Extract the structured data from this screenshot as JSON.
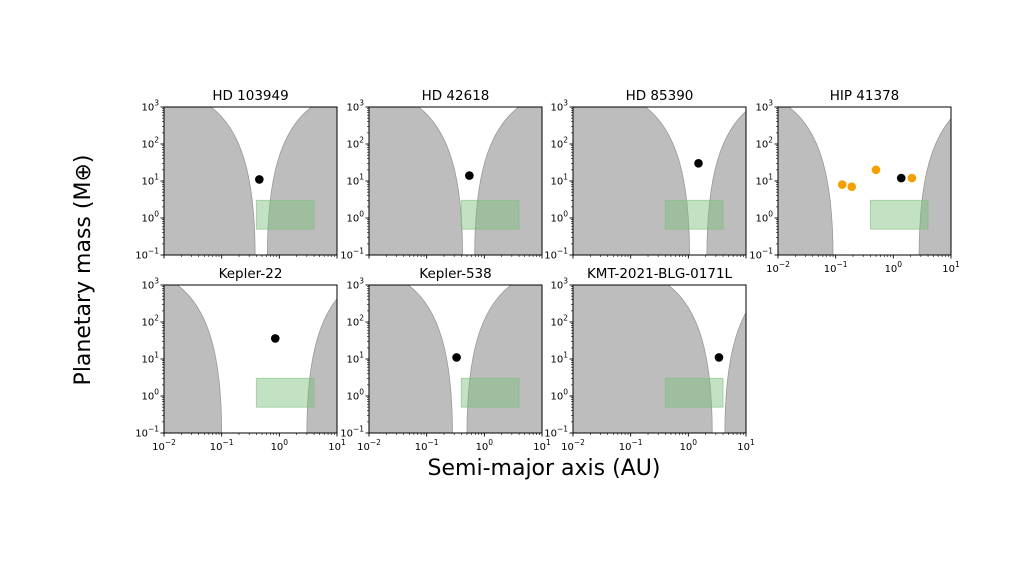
{
  "figure": {
    "ylabel": "Planetary mass (M⊕)",
    "xlabel": "Semi-major axis (AU)"
  },
  "chart_data": {
    "type": "scatter",
    "x_scale": "log",
    "y_scale": "log",
    "xlim": [
      0.01,
      10
    ],
    "ylim": [
      0.1,
      1000
    ],
    "x_ticks": [
      0.01,
      0.1,
      1,
      10
    ],
    "y_ticks": [
      0.1,
      1,
      10,
      100,
      1000
    ],
    "colors": {
      "excluded_region": "#bdbdbd",
      "excluded_edge": "#999999",
      "highlight_box": "#7bbf7b",
      "planet_primary": "#000000",
      "planet_companion": "#f5a000"
    },
    "highlight_box": {
      "x": [
        0.4,
        4
      ],
      "y": [
        0.5,
        3
      ]
    },
    "panels": [
      {
        "title": "HD 103949",
        "inner_limit": 0.38,
        "outer_limit": 0.62,
        "show_xticks": false,
        "points": [
          {
            "x": 0.45,
            "y": 11,
            "color": "#000000"
          }
        ]
      },
      {
        "title": "HD 42618",
        "inner_limit": 0.42,
        "outer_limit": 0.68,
        "show_xticks": false,
        "points": [
          {
            "x": 0.55,
            "y": 14,
            "color": "#000000"
          }
        ]
      },
      {
        "title": "HD 85390",
        "inner_limit": 1.05,
        "outer_limit": 2.1,
        "show_xticks": false,
        "points": [
          {
            "x": 1.5,
            "y": 30,
            "color": "#000000"
          }
        ]
      },
      {
        "title": "HIP 41378",
        "inner_limit": 0.09,
        "outer_limit": 2.8,
        "show_xticks": true,
        "points": [
          {
            "x": 0.13,
            "y": 8,
            "color": "#f5a000"
          },
          {
            "x": 0.19,
            "y": 7,
            "color": "#f5a000"
          },
          {
            "x": 0.5,
            "y": 20,
            "color": "#f5a000"
          },
          {
            "x": 1.37,
            "y": 12,
            "color": "#000000"
          },
          {
            "x": 2.1,
            "y": 12,
            "color": "#f5a000"
          }
        ]
      },
      {
        "title": "Kepler-22",
        "inner_limit": 0.1,
        "outer_limit": 3.0,
        "show_xticks": true,
        "points": [
          {
            "x": 0.85,
            "y": 36,
            "color": "#000000"
          }
        ]
      },
      {
        "title": "Kepler-538",
        "inner_limit": 0.28,
        "outer_limit": 0.5,
        "show_xticks": true,
        "points": [
          {
            "x": 0.33,
            "y": 11,
            "color": "#000000"
          }
        ]
      },
      {
        "title": "KMT-2021-BLG-0171L",
        "inner_limit": 2.6,
        "outer_limit": 4.3,
        "show_xticks": true,
        "points": [
          {
            "x": 3.4,
            "y": 11,
            "color": "#000000"
          }
        ]
      }
    ]
  }
}
